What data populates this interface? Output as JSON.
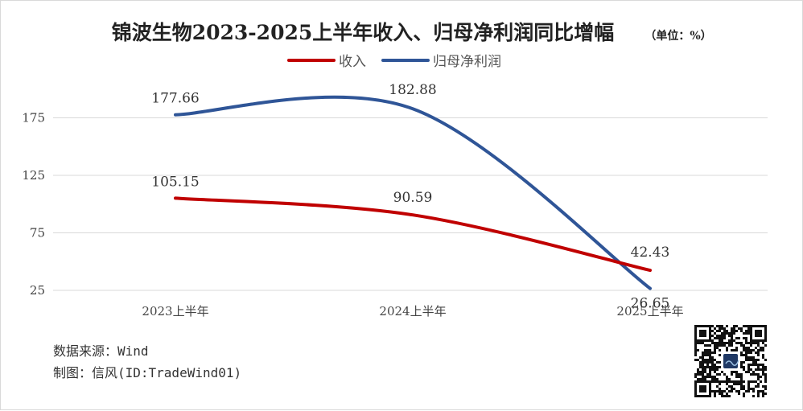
{
  "chart_data": {
    "type": "line",
    "title": "锦波生物2023-2025上半年收入、归母净利润同比增幅",
    "unit_note": "（单位：%）",
    "categories": [
      "2023上半年",
      "2024上半年",
      "2025上半年"
    ],
    "series": [
      {
        "name": "收入",
        "values": [
          105.15,
          90.59,
          42.43
        ],
        "color": "#c00000"
      },
      {
        "name": "归母净利润",
        "values": [
          177.66,
          182.88,
          26.65
        ],
        "color": "#2f5597"
      }
    ],
    "y_ticks": [
      25,
      75,
      125,
      175
    ],
    "ylim": [
      25,
      205
    ],
    "grid": true,
    "legend_position": "top-center",
    "xlabel": "",
    "ylabel": ""
  },
  "footer": {
    "source": "数据来源：Wind",
    "author": "制图：信风(ID:TradeWind01)"
  },
  "qr_code": {
    "icon": "qr-code-icon"
  }
}
